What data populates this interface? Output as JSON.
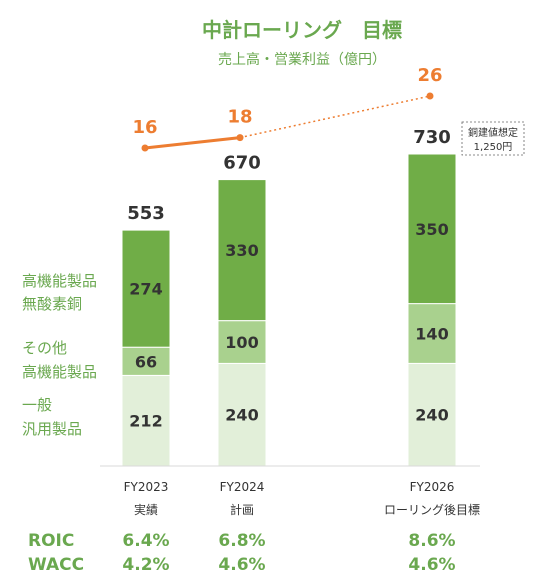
{
  "title": "中計ローリング　目標",
  "subtitle": "売上高・営業利益（億円）",
  "colors": {
    "high_function": "#70ad47",
    "other": "#a9d18e",
    "general": "#e2efd9",
    "profit_line": "#ed7d31",
    "label_green": "#6aa84f"
  },
  "segment_labels": [
    {
      "key": "general",
      "lines": [
        "一般",
        "汎用製品"
      ]
    },
    {
      "key": "other",
      "lines": [
        "その他",
        "高機能製品"
      ]
    },
    {
      "key": "high_function",
      "lines": [
        "高機能製品",
        "無酸素銅"
      ]
    }
  ],
  "note": {
    "lines": [
      "銅建値想定",
      "1,250円"
    ]
  },
  "chart_data": {
    "type": "bar",
    "stacked": true,
    "categories": [
      {
        "lines": [
          "FY2023",
          "実績"
        ]
      },
      {
        "lines": [
          "FY2024",
          "計画"
        ]
      },
      {
        "lines": [
          "FY2026",
          "ローリング後目標"
        ]
      }
    ],
    "series": [
      {
        "key": "general",
        "name": "一般 汎用製品",
        "values": [
          212,
          240,
          240
        ]
      },
      {
        "key": "other",
        "name": "その他 高機能製品",
        "values": [
          66,
          100,
          140
        ]
      },
      {
        "key": "high_function",
        "name": "高機能製品 無酸素銅",
        "values": [
          274,
          330,
          350
        ]
      }
    ],
    "totals": [
      "553",
      "670",
      "730"
    ],
    "operating_profit": {
      "values": [
        16,
        18,
        26
      ],
      "line_style": [
        "solid",
        "dotted"
      ]
    },
    "ylim": [
      0,
      730
    ]
  },
  "metrics": [
    {
      "label": "ROIC",
      "values": [
        "6.4%",
        "6.8%",
        "8.6%"
      ]
    },
    {
      "label": "WACC",
      "values": [
        "4.2%",
        "4.6%",
        "4.6%"
      ]
    }
  ]
}
